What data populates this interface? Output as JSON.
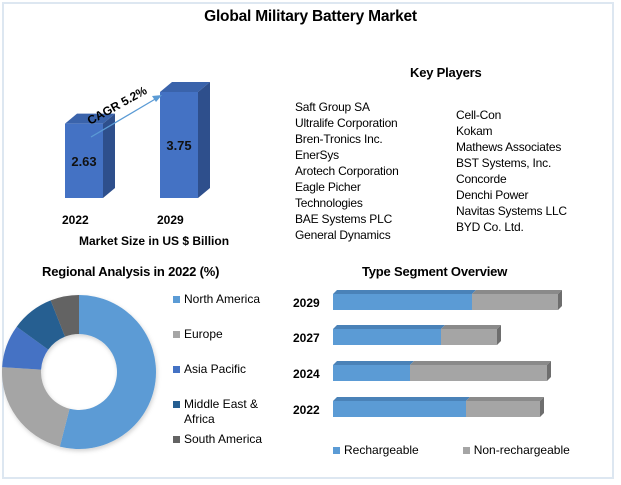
{
  "page": {
    "title": "Global Military Battery Market"
  },
  "market_size": {
    "cagr_label": "CAGR 5.2%",
    "caption": "Market Size in US $ Billion"
  },
  "key_players": {
    "title": "Key Players",
    "column1": [
      "Saft Group SA",
      "Ultralife Corporation",
      "Bren-Tronics Inc.",
      "EnerSys",
      "Arotech Corporation",
      "Eagle Picher",
      "Technologies",
      "BAE Systems PLC",
      "General Dynamics"
    ],
    "column2": [
      "Cell-Con",
      "Kokam",
      "Mathews Associates",
      "BST Systems, Inc.",
      "Concorde",
      "Denchi Power",
      "Navitas Systems LLC",
      "BYD Co. Ltd."
    ]
  },
  "regional": {
    "title": "Regional Analysis in 2022 (%)"
  },
  "type_segment": {
    "title": "Type Segment Overview"
  },
  "chart_data": [
    {
      "type": "bar",
      "title": "Market Size in US $ Billion",
      "categories": [
        "2022",
        "2029"
      ],
      "values": [
        2.63,
        3.75
      ],
      "data_labels": [
        "2.63",
        "3.75"
      ],
      "annotation": "CAGR 5.2%",
      "xlabel": "Market Size in US $ Billion",
      "ylabel": "",
      "ylim": [
        0,
        4
      ],
      "grid": false,
      "color": "#4472c4"
    },
    {
      "type": "pie",
      "title": "Regional Analysis in 2022 (%)",
      "donut": true,
      "categories": [
        "North America",
        "Europe",
        "Asia Pacific",
        "Middle East & Africa",
        "South America"
      ],
      "legend_labels": [
        "North America",
        "Europe",
        "Asia Pacific",
        "Middle East &",
        "Africa",
        "South America"
      ],
      "values": [
        54,
        22,
        9,
        9,
        6
      ],
      "colors": [
        "#5b9bd5",
        "#a5a5a5",
        "#4472c4",
        "#255e91",
        "#636363"
      ],
      "legend": "right"
    },
    {
      "type": "bar",
      "orientation": "horizontal",
      "stacked": true,
      "title": "Type Segment Overview",
      "categories": [
        "2029",
        "2027",
        "2024",
        "2022"
      ],
      "series": [
        {
          "name": "Rechargeable",
          "values": [
            139,
            108,
            77,
            133
          ],
          "color": "#5b9bd5"
        },
        {
          "name": "Non-rechargeable",
          "values": [
            86,
            56,
            137,
            74
          ],
          "color": "#a5a5a5"
        }
      ],
      "xlim": [
        0,
        230
      ],
      "grid": false,
      "legend": "bottom"
    }
  ]
}
